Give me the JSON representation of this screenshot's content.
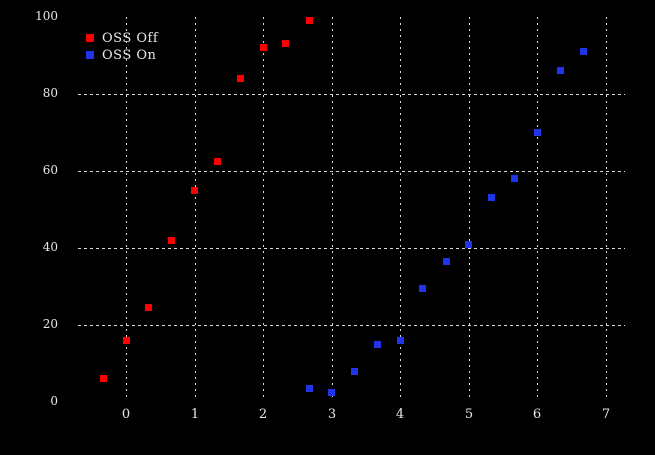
{
  "chart_data": {
    "type": "scatter",
    "title": "",
    "background_color": "#000000",
    "grid_color": "#d9d9d9",
    "text_color": "#e8e8e8",
    "x_axis": {
      "label": "",
      "ticks": [
        0,
        1,
        2,
        3,
        4,
        5,
        6,
        7
      ],
      "min": -0.9,
      "max": 7.3,
      "grid": "dotted vertical line at every tick"
    },
    "y_axis": {
      "label": "",
      "ticks": [
        0,
        20,
        40,
        60,
        80,
        100
      ],
      "grid_ticks": [
        20,
        40,
        60,
        80
      ],
      "min": 0,
      "max": 100,
      "grid": "dotted horizontal line at interior ticks only"
    },
    "legend": {
      "position": "top-left",
      "entries": [
        "OSS Off",
        "OSS On"
      ]
    },
    "series": [
      {
        "name": "OSS Off",
        "color": "#ff0000",
        "marker": "square",
        "points": [
          [
            -0.33,
            6
          ],
          [
            0,
            16
          ],
          [
            0.33,
            24.5
          ],
          [
            0.67,
            42
          ],
          [
            1,
            55
          ],
          [
            1.33,
            62.5
          ],
          [
            1.67,
            84
          ],
          [
            2,
            92
          ],
          [
            2.33,
            93
          ],
          [
            2.67,
            99
          ]
        ]
      },
      {
        "name": "OSS On",
        "color": "#2135e8",
        "marker": "square",
        "points": [
          [
            2.67,
            3.5
          ],
          [
            3,
            2.5
          ],
          [
            3.33,
            8
          ],
          [
            3.67,
            15
          ],
          [
            4,
            16
          ],
          [
            4.33,
            29.5
          ],
          [
            4.67,
            36.5
          ],
          [
            5,
            41
          ],
          [
            5.33,
            53
          ],
          [
            5.67,
            58
          ],
          [
            6,
            70
          ],
          [
            6.33,
            86
          ],
          [
            6.67,
            91
          ]
        ]
      }
    ]
  }
}
